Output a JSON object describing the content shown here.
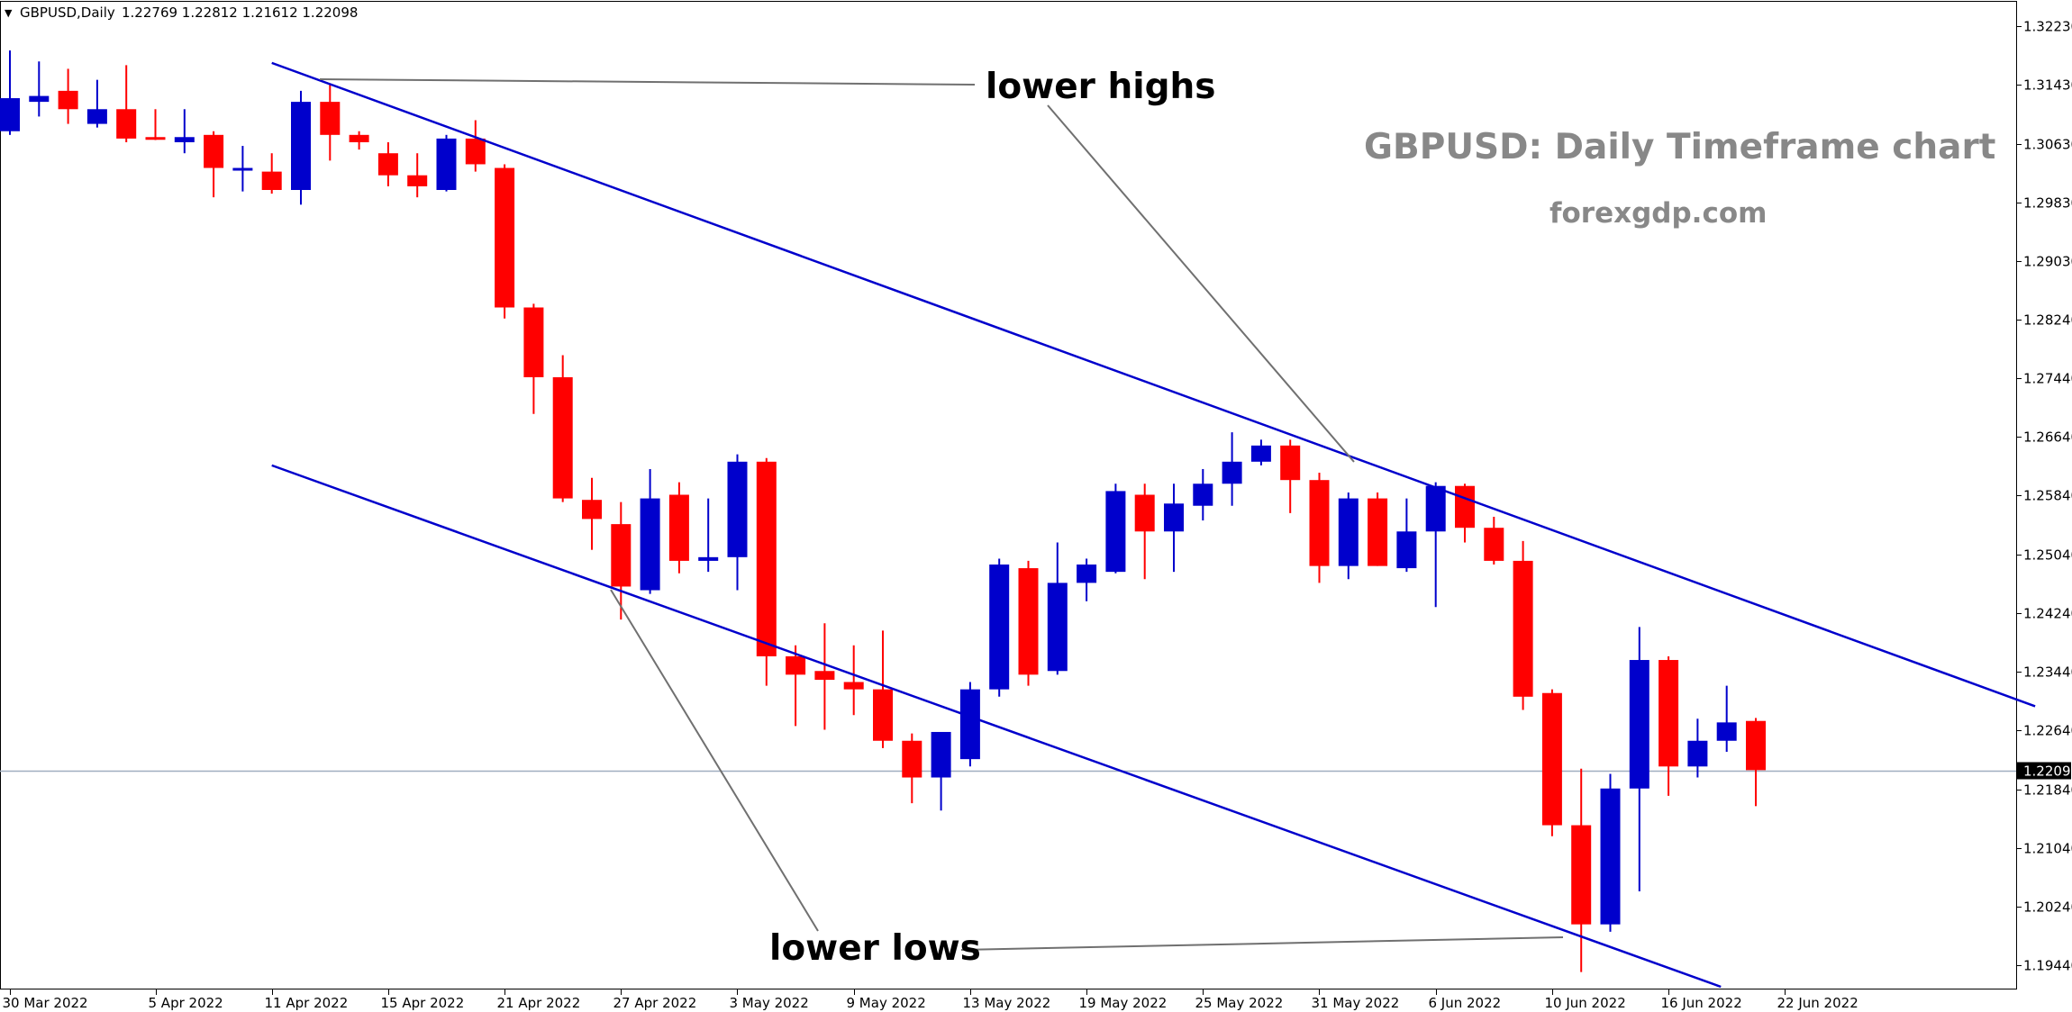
{
  "header": {
    "collapse_glyph": "▼",
    "symbol": "GBPUSD,Daily",
    "ohlc": "1.22769 1.22812 1.21612 1.22098"
  },
  "watermark": {
    "title": "GBPUSD: Daily Timeframe chart",
    "site": "forexgdp.com"
  },
  "annotations": {
    "lower_highs": "lower highs",
    "lower_lows": "lower lows"
  },
  "current_price": {
    "label": "1.22098",
    "value": 1.22098
  },
  "colors": {
    "bull": "#0000cc",
    "bear": "#ff0000",
    "trendline": "#0000cc",
    "pointer": "#707070",
    "price_line": "#a0aec0",
    "price_tag_bg": "#000000",
    "price_tag_text": "#ffffff"
  },
  "chart_data": {
    "type": "candlestick",
    "instrument": "GBPUSD",
    "timeframe": "Daily",
    "ylim": [
      1.1915,
      1.3255
    ],
    "y_ticks": [
      "1.32230",
      "1.31430",
      "1.30630",
      "1.29830",
      "1.29030",
      "1.28240",
      "1.27440",
      "1.26640",
      "1.25840",
      "1.25040",
      "1.24240",
      "1.23440",
      "1.22640",
      "1.21840",
      "1.21040",
      "1.20240",
      "1.19440"
    ],
    "x_tick_labels": [
      {
        "index": 0,
        "label": "30 Mar 2022"
      },
      {
        "index": 5,
        "label": "5 Apr 2022"
      },
      {
        "index": 9,
        "label": "11 Apr 2022"
      },
      {
        "index": 13,
        "label": "15 Apr 2022"
      },
      {
        "index": 17,
        "label": "21 Apr 2022"
      },
      {
        "index": 21,
        "label": "27 Apr 2022"
      },
      {
        "index": 25,
        "label": "3 May 2022"
      },
      {
        "index": 29,
        "label": "9 May 2022"
      },
      {
        "index": 33,
        "label": "13 May 2022"
      },
      {
        "index": 37,
        "label": "19 May 2022"
      },
      {
        "index": 41,
        "label": "25 May 2022"
      },
      {
        "index": 45,
        "label": "31 May 2022"
      },
      {
        "index": 49,
        "label": "6 Jun 2022"
      },
      {
        "index": 53,
        "label": "10 Jun 2022"
      },
      {
        "index": 57,
        "label": "16 Jun 2022"
      },
      {
        "index": 61,
        "label": "22 Jun 2022"
      }
    ],
    "candles": [
      {
        "o": 1.308,
        "h": 1.319,
        "l": 1.3075,
        "c": 1.3125
      },
      {
        "o": 1.312,
        "h": 1.3175,
        "l": 1.31,
        "c": 1.3128
      },
      {
        "o": 1.3135,
        "h": 1.3165,
        "l": 1.309,
        "c": 1.311
      },
      {
        "o": 1.309,
        "h": 1.315,
        "l": 1.3085,
        "c": 1.311
      },
      {
        "o": 1.311,
        "h": 1.317,
        "l": 1.3065,
        "c": 1.307
      },
      {
        "o": 1.3072,
        "h": 1.311,
        "l": 1.3068,
        "c": 1.307
      },
      {
        "o": 1.3065,
        "h": 1.311,
        "l": 1.305,
        "c": 1.3072
      },
      {
        "o": 1.3075,
        "h": 1.308,
        "l": 1.299,
        "c": 1.303
      },
      {
        "o": 1.303,
        "h": 1.306,
        "l": 1.2998,
        "c": 1.303
      },
      {
        "o": 1.3025,
        "h": 1.305,
        "l": 1.2995,
        "c": 1.3
      },
      {
        "o": 1.3,
        "h": 1.3135,
        "l": 1.298,
        "c": 1.312
      },
      {
        "o": 1.312,
        "h": 1.3145,
        "l": 1.304,
        "c": 1.3075
      },
      {
        "o": 1.3075,
        "h": 1.308,
        "l": 1.3055,
        "c": 1.3065
      },
      {
        "o": 1.305,
        "h": 1.3065,
        "l": 1.3005,
        "c": 1.302
      },
      {
        "o": 1.302,
        "h": 1.305,
        "l": 1.299,
        "c": 1.3005
      },
      {
        "o": 1.3,
        "h": 1.3075,
        "l": 1.2998,
        "c": 1.307
      },
      {
        "o": 1.307,
        "h": 1.3095,
        "l": 1.3025,
        "c": 1.3035
      },
      {
        "o": 1.303,
        "h": 1.3035,
        "l": 1.2825,
        "c": 1.284
      },
      {
        "o": 1.284,
        "h": 1.2845,
        "l": 1.2695,
        "c": 1.2745
      },
      {
        "o": 1.2745,
        "h": 1.2775,
        "l": 1.2575,
        "c": 1.258
      },
      {
        "o": 1.2578,
        "h": 1.2608,
        "l": 1.251,
        "c": 1.2552
      },
      {
        "o": 1.2545,
        "h": 1.2575,
        "l": 1.2415,
        "c": 1.246
      },
      {
        "o": 1.2455,
        "h": 1.262,
        "l": 1.245,
        "c": 1.258
      },
      {
        "o": 1.2585,
        "h": 1.2602,
        "l": 1.2478,
        "c": 1.2495
      },
      {
        "o": 1.2495,
        "h": 1.258,
        "l": 1.248,
        "c": 1.25
      },
      {
        "o": 1.25,
        "h": 1.264,
        "l": 1.2455,
        "c": 1.263
      },
      {
        "o": 1.263,
        "h": 1.2635,
        "l": 1.2325,
        "c": 1.2365
      },
      {
        "o": 1.2365,
        "h": 1.238,
        "l": 1.227,
        "c": 1.234
      },
      {
        "o": 1.2345,
        "h": 1.241,
        "l": 1.2265,
        "c": 1.2333
      },
      {
        "o": 1.233,
        "h": 1.238,
        "l": 1.2285,
        "c": 1.232
      },
      {
        "o": 1.232,
        "h": 1.24,
        "l": 1.224,
        "c": 1.225
      },
      {
        "o": 1.225,
        "h": 1.226,
        "l": 1.2165,
        "c": 1.22
      },
      {
        "o": 1.22,
        "h": 1.2255,
        "l": 1.2155,
        "c": 1.2262
      },
      {
        "o": 1.2225,
        "h": 1.233,
        "l": 1.2215,
        "c": 1.232
      },
      {
        "o": 1.232,
        "h": 1.2498,
        "l": 1.231,
        "c": 1.249
      },
      {
        "o": 1.2485,
        "h": 1.2495,
        "l": 1.2325,
        "c": 1.234
      },
      {
        "o": 1.2345,
        "h": 1.252,
        "l": 1.234,
        "c": 1.2465
      },
      {
        "o": 1.2465,
        "h": 1.2498,
        "l": 1.244,
        "c": 1.249
      },
      {
        "o": 1.248,
        "h": 1.26,
        "l": 1.2478,
        "c": 1.259
      },
      {
        "o": 1.2585,
        "h": 1.26,
        "l": 1.247,
        "c": 1.2535
      },
      {
        "o": 1.2535,
        "h": 1.26,
        "l": 1.248,
        "c": 1.2573
      },
      {
        "o": 1.257,
        "h": 1.262,
        "l": 1.255,
        "c": 1.26
      },
      {
        "o": 1.26,
        "h": 1.267,
        "l": 1.257,
        "c": 1.263
      },
      {
        "o": 1.263,
        "h": 1.266,
        "l": 1.2625,
        "c": 1.2652
      },
      {
        "o": 1.2652,
        "h": 1.266,
        "l": 1.256,
        "c": 1.2605
      },
      {
        "o": 1.2605,
        "h": 1.2615,
        "l": 1.2465,
        "c": 1.2488
      },
      {
        "o": 1.2488,
        "h": 1.2588,
        "l": 1.247,
        "c": 1.258
      },
      {
        "o": 1.258,
        "h": 1.2588,
        "l": 1.2488,
        "c": 1.2488
      },
      {
        "o": 1.2485,
        "h": 1.258,
        "l": 1.248,
        "c": 1.2535
      },
      {
        "o": 1.2535,
        "h": 1.2602,
        "l": 1.2432,
        "c": 1.2597
      },
      {
        "o": 1.2597,
        "h": 1.26,
        "l": 1.252,
        "c": 1.254
      },
      {
        "o": 1.254,
        "h": 1.2555,
        "l": 1.249,
        "c": 1.2495
      },
      {
        "o": 1.2495,
        "h": 1.2522,
        "l": 1.2292,
        "c": 1.231
      },
      {
        "o": 1.2315,
        "h": 1.232,
        "l": 1.212,
        "c": 1.2135
      },
      {
        "o": 1.2135,
        "h": 1.2212,
        "l": 1.1935,
        "c": 1.2
      },
      {
        "o": 1.2,
        "h": 1.2205,
        "l": 1.199,
        "c": 1.2185
      },
      {
        "o": 1.2185,
        "h": 1.2405,
        "l": 1.2045,
        "c": 1.236
      },
      {
        "o": 1.236,
        "h": 1.2365,
        "l": 1.2175,
        "c": 1.2215
      },
      {
        "o": 1.2215,
        "h": 1.228,
        "l": 1.22,
        "c": 1.225
      },
      {
        "o": 1.225,
        "h": 1.2325,
        "l": 1.2235,
        "c": 1.2275
      },
      {
        "o": 1.2277,
        "h": 1.2281,
        "l": 1.2161,
        "c": 1.221
      }
    ],
    "trendlines": [
      {
        "name": "upper channel",
        "from": {
          "index": 9,
          "price": 1.3173
        },
        "to": {
          "index": 69.6,
          "price": 1.2297
        }
      },
      {
        "name": "lower channel",
        "from": {
          "index": 9,
          "price": 1.2625
        },
        "to": {
          "index": 58.8,
          "price": 1.1915
        }
      }
    ]
  }
}
